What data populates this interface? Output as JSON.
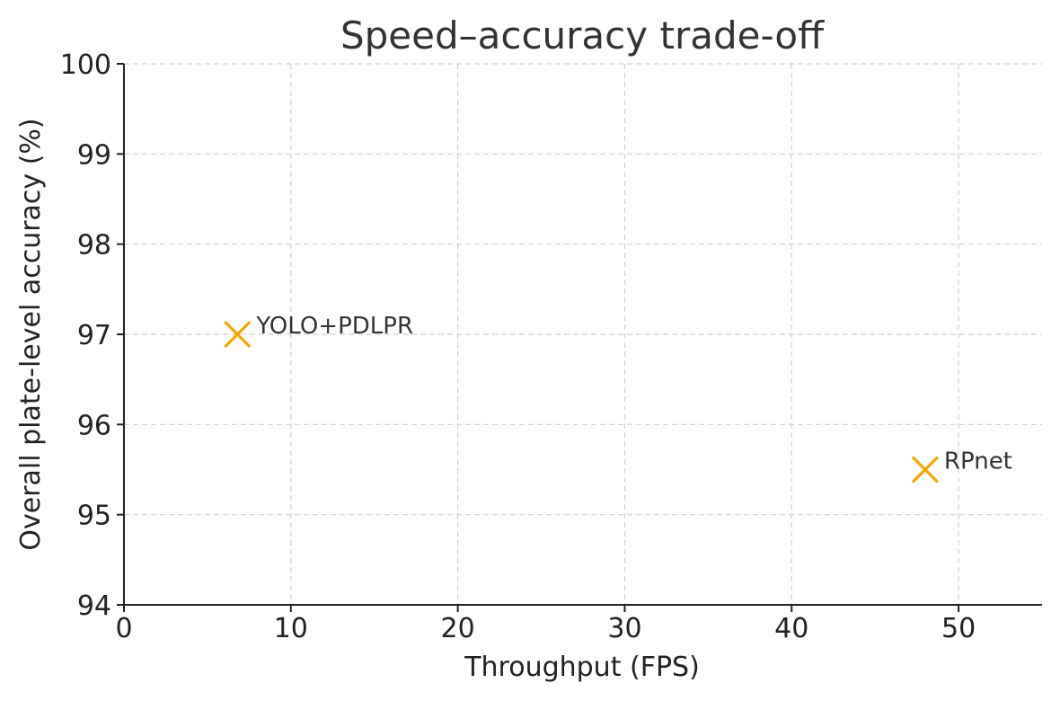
{
  "chart_data": {
    "type": "scatter",
    "title": "Speed–accuracy trade-off",
    "xlabel": "Throughput (FPS)",
    "ylabel": "Overall plate-level accuracy (%)",
    "xlim": [
      0,
      55
    ],
    "ylim": [
      94,
      100
    ],
    "xticks": [
      0,
      10,
      20,
      30,
      40,
      50
    ],
    "yticks": [
      94,
      95,
      96,
      97,
      98,
      99,
      100
    ],
    "grid": true,
    "marker": "x",
    "series": [
      {
        "color": "#f2a900",
        "points": [
          {
            "x": 6.8,
            "y": 97.0,
            "label": "YOLO+PDLPR"
          },
          {
            "x": 48.0,
            "y": 95.5,
            "label": "RPnet"
          }
        ]
      }
    ]
  }
}
